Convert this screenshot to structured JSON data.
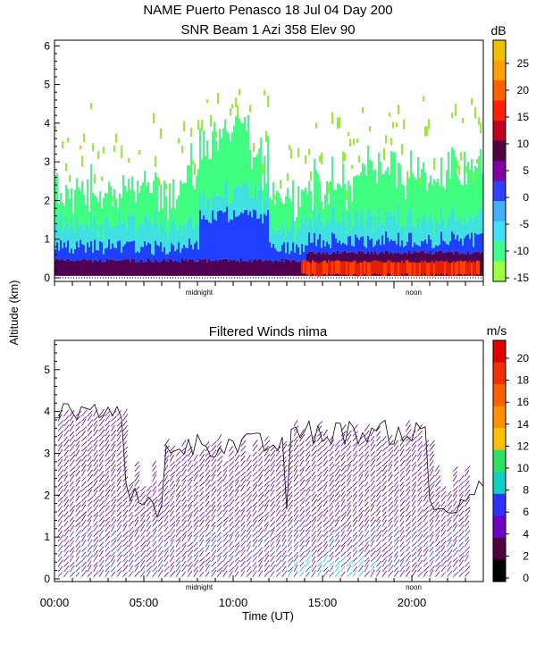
{
  "title_line1": "NAME Puerto Penasco  18 Jul 04 Day 200",
  "title_line2": "SNR Beam 1 Azi 358 Elev 90",
  "ylabel": "Altitude (km)",
  "xlabel": "Time (UT)",
  "chart_data": [
    {
      "type": "heatmap",
      "title": "SNR Beam 1 Azi 358 Elev 90",
      "ylim": [
        0,
        6.1
      ],
      "yticks": [
        "0",
        "1",
        "2",
        "3",
        "4",
        "5",
        "6"
      ],
      "x_markers": [
        "midnight",
        "noon"
      ],
      "colorbar": {
        "unit": "dB",
        "ticks": [
          "25",
          "20",
          "15",
          "10",
          "5",
          "0",
          "-5",
          "-10",
          "-15"
        ],
        "colors": [
          "#f0c000",
          "#ffa000",
          "#ff6000",
          "#ff2000",
          "#c00020",
          "#500040",
          "#8000a0",
          "#3040ff",
          "#40b0ff",
          "#40e0ff",
          "#40ff90",
          "#a0ff40"
        ]
      },
      "layers": [
        {
          "name": "surface",
          "color": "#500050"
        },
        {
          "name": "low",
          "color": "#2040ff"
        },
        {
          "name": "mid",
          "color": "#40e0e0"
        },
        {
          "name": "upper",
          "color": "#40ff80"
        },
        {
          "name": "top",
          "color": "#90f030"
        }
      ]
    },
    {
      "type": "vector",
      "title": "Filtered Winds nima",
      "ylim": [
        0,
        5.7
      ],
      "yticks": [
        "0",
        "1",
        "2",
        "3",
        "4",
        "5"
      ],
      "xticks": [
        "00:00",
        "05:00",
        "10:00",
        "15:00",
        "20:00"
      ],
      "x_markers": [
        "midnight",
        "noon"
      ],
      "colorbar": {
        "unit": "m/s",
        "ticks": [
          "20",
          "18",
          "16",
          "14",
          "12",
          "10",
          "8",
          "6",
          "4",
          "2",
          "0"
        ],
        "colors": [
          "#e00000",
          "#f03000",
          "#ff6000",
          "#ff9000",
          "#ffc000",
          "#30e060",
          "#10d0c0",
          "#3030ff",
          "#7000c0",
          "#500040",
          "#000000"
        ]
      }
    }
  ]
}
